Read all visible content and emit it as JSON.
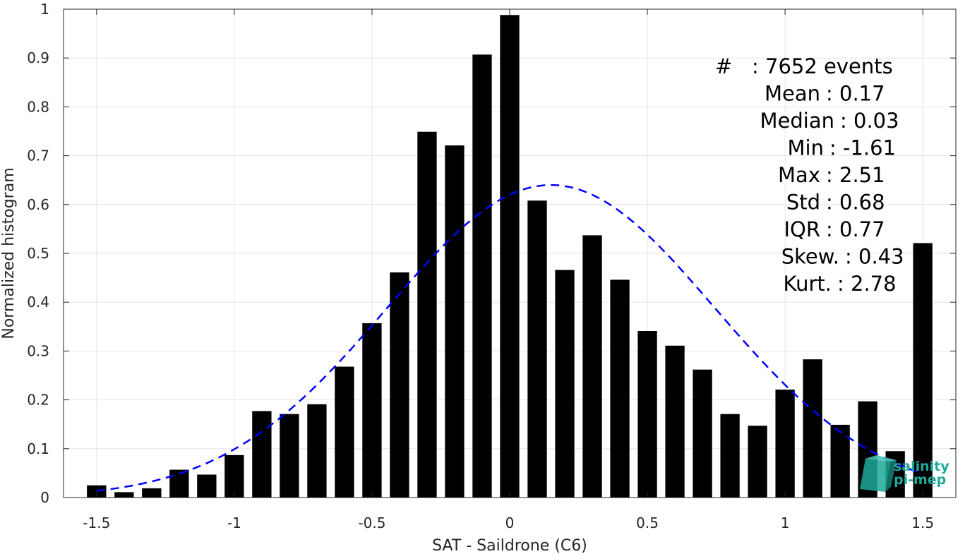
{
  "chart_data": {
    "type": "bar",
    "xlabel": "SAT - Saildrone (C6)",
    "ylabel": "Normalized histogram",
    "xlim": [
      -1.62,
      1.62
    ],
    "ylim": [
      0,
      1
    ],
    "grid": true,
    "xticks": [
      -1.5,
      -1,
      -0.5,
      0,
      0.5,
      1,
      1.5
    ],
    "xtick_labels": [
      "-1.5",
      "-1",
      "-0.5",
      "0",
      "0.5",
      "1",
      "1.5"
    ],
    "yticks": [
      0,
      0.1,
      0.2,
      0.3,
      0.4,
      0.5,
      0.6,
      0.7,
      0.8,
      0.9,
      1
    ],
    "ytick_labels": [
      "0",
      "0.1",
      "0.2",
      "0.3",
      "0.4",
      "0.5",
      "0.6",
      "0.7",
      "0.8",
      "0.9",
      "1"
    ],
    "bar_color": "#000000",
    "bins": [
      -1.5,
      -1.4,
      -1.3,
      -1.2,
      -1.1,
      -1.0,
      -0.9,
      -0.8,
      -0.7,
      -0.6,
      -0.5,
      -0.4,
      -0.3,
      -0.2,
      -0.1,
      0.0,
      0.1,
      0.2,
      0.3,
      0.4,
      0.5,
      0.6,
      0.7,
      0.8,
      0.9,
      1.0,
      1.1,
      1.2,
      1.3,
      1.4,
      1.5
    ],
    "values": [
      0.025,
      0.011,
      0.019,
      0.057,
      0.047,
      0.087,
      0.177,
      0.171,
      0.191,
      0.268,
      0.357,
      0.461,
      0.749,
      0.721,
      0.907,
      0.988,
      0.608,
      0.466,
      0.537,
      0.446,
      0.341,
      0.311,
      0.262,
      0.171,
      0.147,
      0.221,
      0.283,
      0.149,
      0.197,
      0.095,
      0.521
    ],
    "fit_curve": {
      "style": "dashed",
      "color": "#0000ff",
      "x_range": [
        -1.5,
        1.5
      ],
      "mean": 0.15,
      "std": 0.595,
      "peak": 0.64
    },
    "stats": [
      {
        "label": "#",
        "sep": ":",
        "value": "7652 events"
      },
      {
        "label": "Mean",
        "sep": ":",
        "value": "0.17"
      },
      {
        "label": "Median",
        "sep": ":",
        "value": "0.03"
      },
      {
        "label": "Min",
        "sep": ":",
        "value": "-1.61"
      },
      {
        "label": "Max",
        "sep": ":",
        "value": "2.51"
      },
      {
        "label": "Std",
        "sep": ":",
        "value": "0.68"
      },
      {
        "label": "IQR",
        "sep": ":",
        "value": "0.77"
      },
      {
        "label": "Skew.",
        "sep": ":",
        "value": "0.43"
      },
      {
        "label": "Kurt.",
        "sep": ":",
        "value": "2.78"
      }
    ]
  },
  "logo": {
    "line1": "salinity",
    "line2": "pi-mep",
    "color": "#1fa99a"
  }
}
